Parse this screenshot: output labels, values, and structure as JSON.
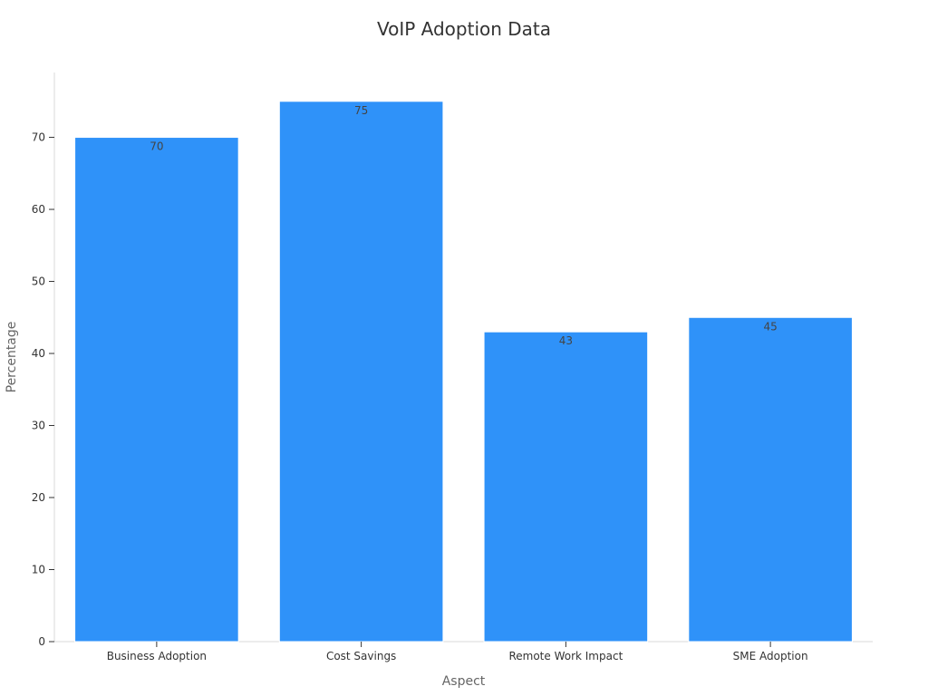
{
  "chart_data": {
    "type": "bar",
    "title": "VoIP Adoption Data",
    "xlabel": "Aspect",
    "ylabel": "Percentage",
    "categories": [
      "Business Adoption",
      "Cost Savings",
      "Remote Work Impact",
      "SME Adoption"
    ],
    "values": [
      70,
      75,
      43,
      45
    ],
    "ylim": [
      0,
      79
    ],
    "yticks": [
      0,
      10,
      20,
      30,
      40,
      50,
      60,
      70
    ],
    "bar_color": "#2f92f9",
    "grid": false,
    "legend": "none"
  }
}
